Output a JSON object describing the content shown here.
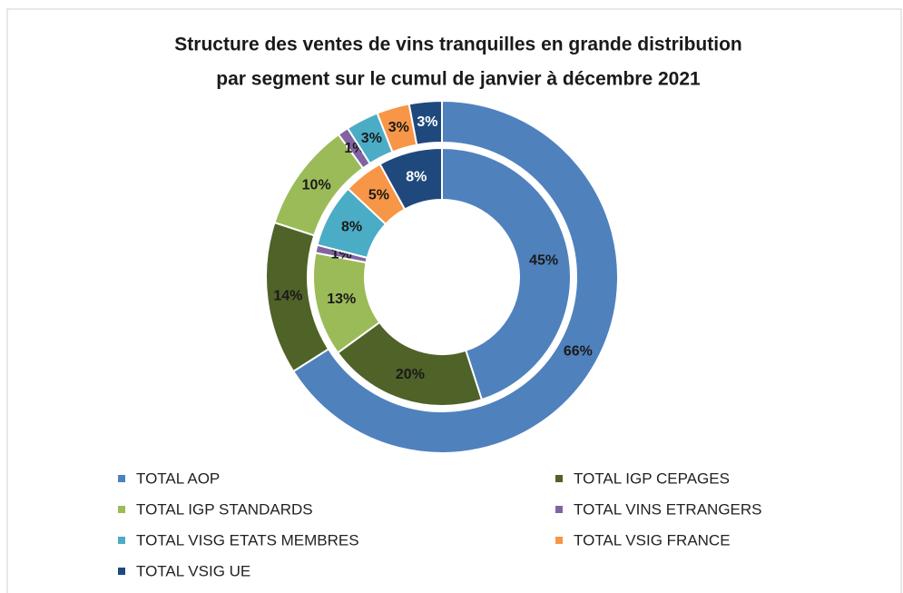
{
  "chart_data": {
    "type": "doughnut",
    "title": [
      "Structure des ventes de vins tranquilles  en grande distribution",
      "par segment sur le cumul  de janvier à décembre 2021"
    ],
    "categories": [
      "TOTAL AOP",
      "TOTAL IGP CEPAGES",
      "TOTAL IGP STANDARDS",
      "TOTAL VINS ETRANGERS",
      "TOTAL VISG ETATS MEMBRES",
      "TOTAL VSIG FRANCE",
      "TOTAL VSIG UE"
    ],
    "colors": [
      "#4f81bd",
      "#4f6228",
      "#9bbb59",
      "#8064a2",
      "#4bacc6",
      "#f79646",
      "#1f497d"
    ],
    "series": [
      {
        "values": [
          45,
          20,
          13,
          1,
          8,
          5,
          8
        ],
        "value_labels": [
          "45%",
          "20%",
          "13%",
          "1%",
          "8%",
          "5%",
          "8%"
        ]
      },
      {
        "values": [
          66,
          14,
          10,
          1,
          3,
          3,
          3
        ],
        "value_labels": [
          "66%",
          "14%",
          "10%",
          "1%",
          "3%",
          "3%",
          "3%"
        ]
      }
    ],
    "legend": "bottom"
  }
}
